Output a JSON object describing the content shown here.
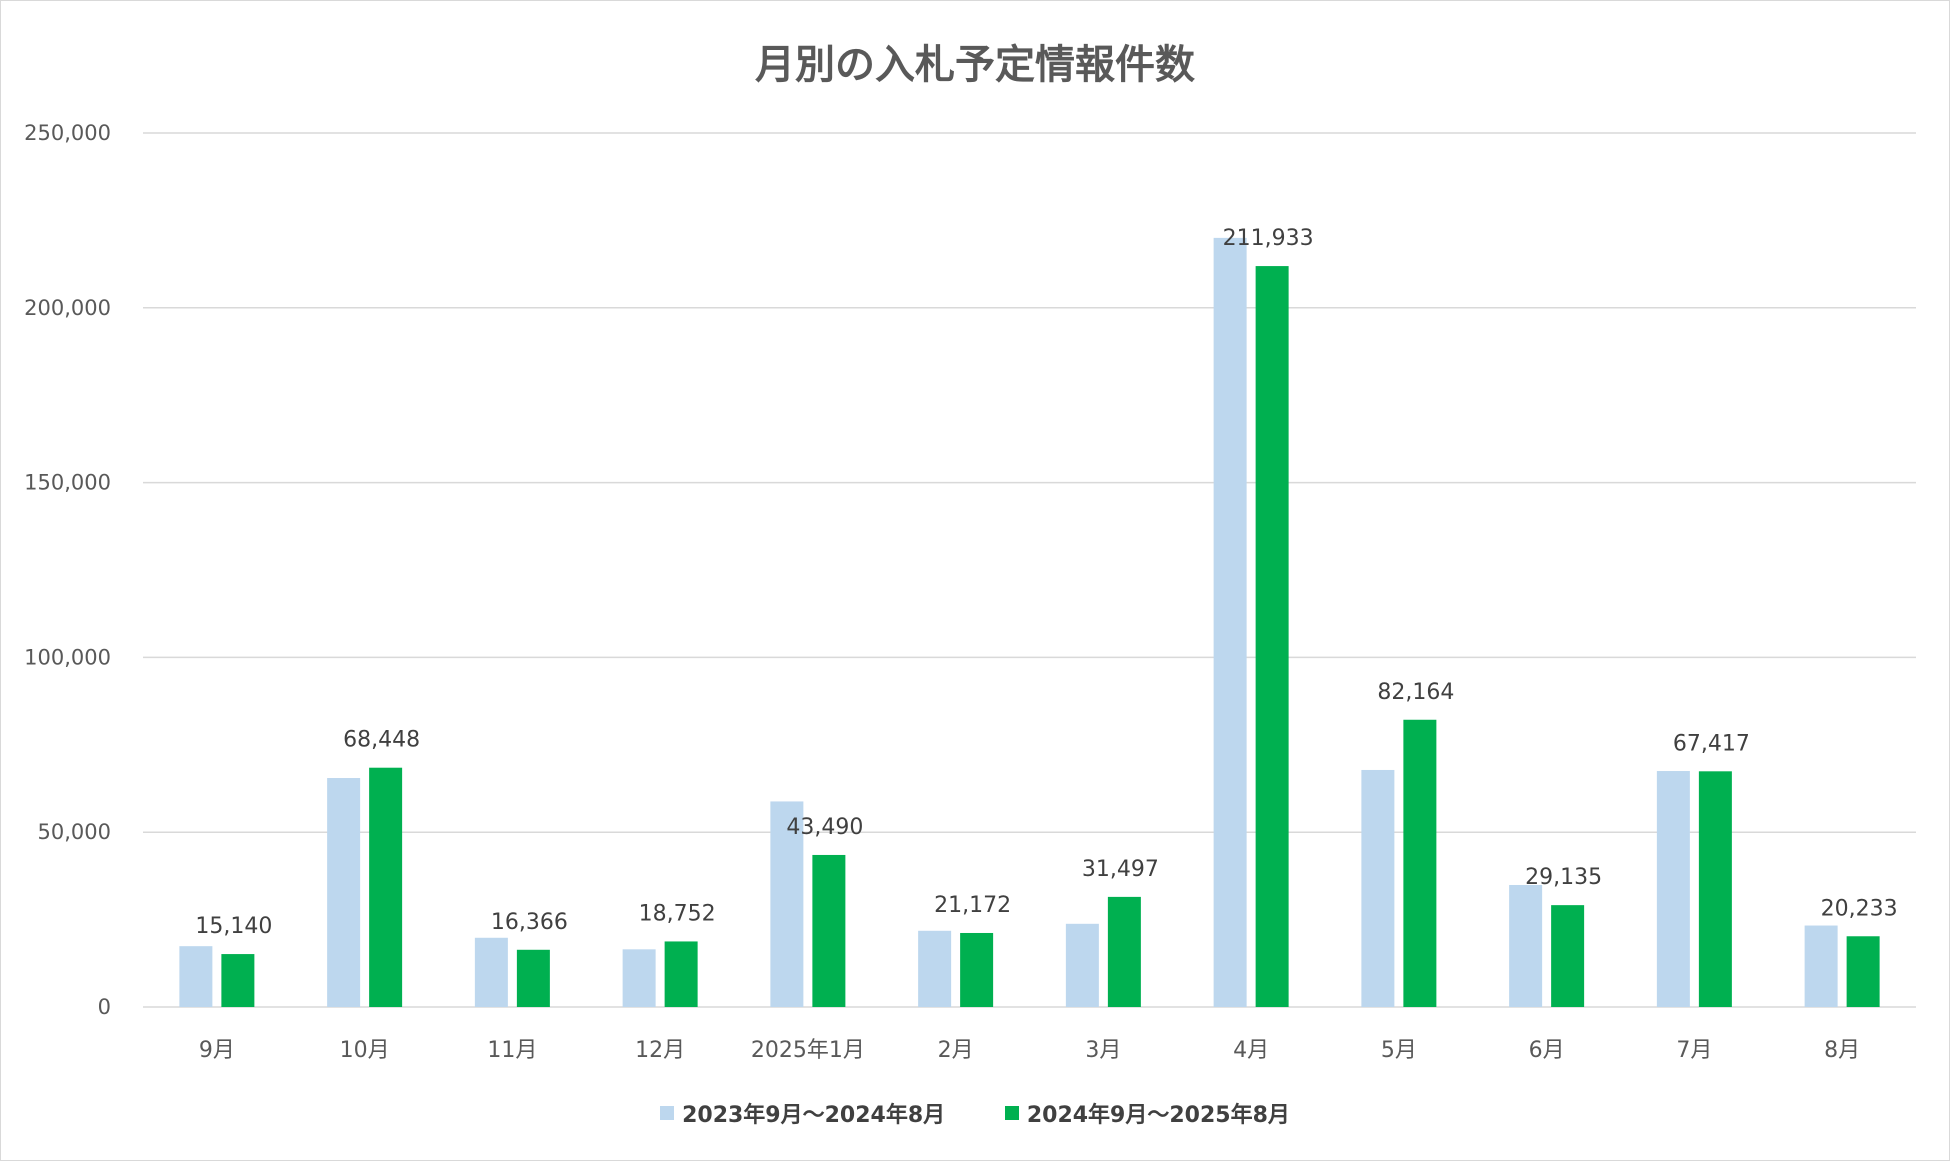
{
  "chart_data": {
    "type": "bar",
    "title": "月別の入札予定情報件数",
    "categories": [
      "9月",
      "10月",
      "11月",
      "12月",
      "2025年1月",
      "2月",
      "3月",
      "4月",
      "5月",
      "6月",
      "7月",
      "8月"
    ],
    "series": [
      {
        "name": "2023年9月～2024年8月",
        "color": "#bdd7ee",
        "values": [
          17400,
          65500,
          19800,
          16500,
          58800,
          21800,
          23800,
          220000,
          67800,
          34900,
          67500,
          23300
        ],
        "labels": []
      },
      {
        "name": "2024年9月～2025年8月",
        "color": "#00b050",
        "values": [
          15140,
          68448,
          16366,
          18752,
          43490,
          21172,
          31497,
          211933,
          82164,
          29135,
          67417,
          20233
        ],
        "labels": [
          "15,140",
          "68,448",
          "16,366",
          "18,752",
          "43,490",
          "21,172",
          "31,497",
          "211,933",
          "82,164",
          "29,135",
          "67,417",
          "20,233"
        ]
      }
    ],
    "ylim": [
      0,
      250000
    ],
    "yticks": [
      0,
      50000,
      100000,
      150000,
      200000,
      250000
    ],
    "ytick_labels": [
      "0",
      "50,000",
      "100,000",
      "150,000",
      "200,000",
      "250,000"
    ],
    "grid": true,
    "gridline_color": "#d9d9d9",
    "legend_position": "bottom"
  }
}
